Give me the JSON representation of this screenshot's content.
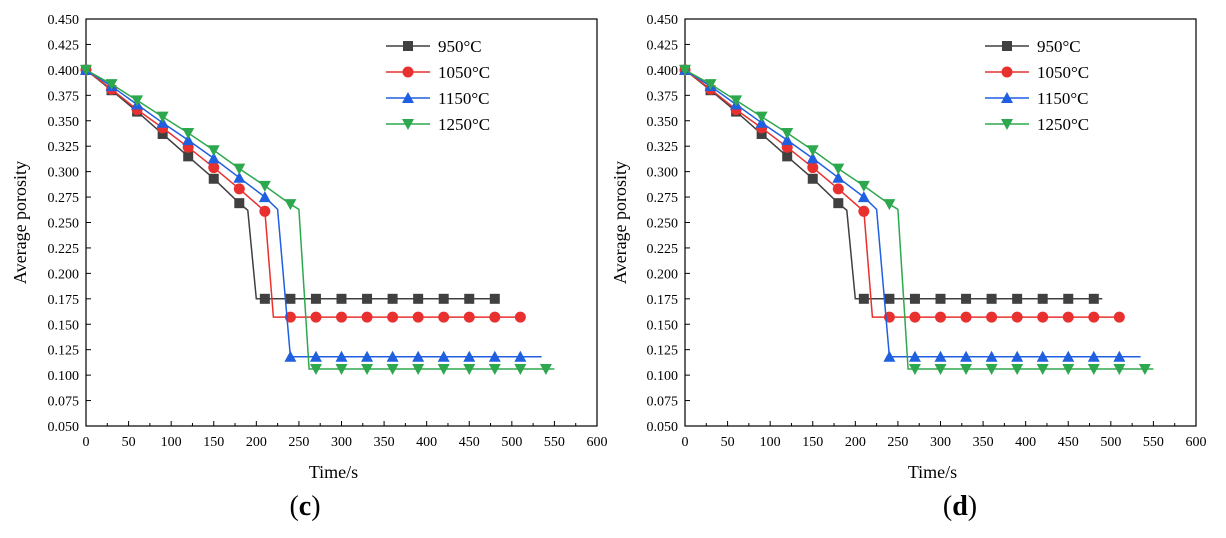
{
  "chart_data": [
    {
      "type": "line",
      "panel_label_open": "(",
      "panel_label_letter": "c",
      "panel_label_close": ")",
      "xlabel": "Time/s",
      "ylabel": "Average porosity",
      "xlim": [
        0,
        600
      ],
      "ylim": [
        0.05,
        0.45
      ],
      "x_ticks": [
        0,
        50,
        100,
        150,
        200,
        250,
        300,
        350,
        400,
        450,
        500,
        550,
        600
      ],
      "y_ticks": [
        "0.050",
        "0.075",
        "0.100",
        "0.125",
        "0.150",
        "0.175",
        "0.200",
        "0.225",
        "0.250",
        "0.275",
        "0.300",
        "0.325",
        "0.350",
        "0.375",
        "0.400",
        "0.425",
        "0.450"
      ],
      "grid": false,
      "legend_position": "top-right",
      "series": [
        {
          "name": "950°C",
          "color": "#404040",
          "marker": "square",
          "line_x": [
            0,
            30,
            60,
            90,
            120,
            150,
            180,
            190,
            200,
            210,
            480
          ],
          "line_y": [
            0.4,
            0.38,
            0.359,
            0.337,
            0.315,
            0.293,
            0.269,
            0.262,
            0.175,
            0.175,
            0.175
          ],
          "marker_x": [
            0,
            30,
            60,
            90,
            120,
            150,
            180,
            210,
            240,
            270,
            300,
            330,
            360,
            390,
            420,
            450,
            480
          ],
          "marker_y": [
            0.4,
            0.38,
            0.359,
            0.337,
            0.315,
            0.293,
            0.269,
            0.175,
            0.175,
            0.175,
            0.175,
            0.175,
            0.175,
            0.175,
            0.175,
            0.175,
            0.175
          ]
        },
        {
          "name": "1050°C",
          "color": "#e8312f",
          "marker": "circle",
          "line_x": [
            0,
            30,
            60,
            90,
            120,
            150,
            180,
            210,
            220,
            230,
            510
          ],
          "line_y": [
            0.4,
            0.381,
            0.361,
            0.343,
            0.324,
            0.304,
            0.283,
            0.261,
            0.157,
            0.157,
            0.157
          ],
          "marker_x": [
            0,
            30,
            60,
            90,
            120,
            150,
            180,
            210,
            240,
            270,
            300,
            330,
            360,
            390,
            420,
            450,
            480,
            510
          ],
          "marker_y": [
            0.4,
            0.381,
            0.361,
            0.343,
            0.324,
            0.304,
            0.283,
            0.261,
            0.157,
            0.157,
            0.157,
            0.157,
            0.157,
            0.157,
            0.157,
            0.157,
            0.157,
            0.157
          ]
        },
        {
          "name": "1150°C",
          "color": "#1f5fe0",
          "marker": "triangle-up",
          "line_x": [
            0,
            30,
            60,
            90,
            120,
            150,
            180,
            210,
            225,
            240,
            535
          ],
          "line_y": [
            0.4,
            0.384,
            0.366,
            0.348,
            0.331,
            0.313,
            0.294,
            0.275,
            0.263,
            0.118,
            0.118
          ],
          "marker_x": [
            0,
            30,
            60,
            90,
            120,
            150,
            180,
            210,
            240,
            270,
            300,
            330,
            360,
            390,
            420,
            450,
            480,
            510
          ],
          "marker_y": [
            0.4,
            0.384,
            0.366,
            0.348,
            0.331,
            0.313,
            0.294,
            0.275,
            0.118,
            0.118,
            0.118,
            0.118,
            0.118,
            0.118,
            0.118,
            0.118,
            0.118,
            0.118
          ]
        },
        {
          "name": "1250°C",
          "color": "#2ea84f",
          "marker": "triangle-down",
          "line_x": [
            0,
            30,
            60,
            90,
            120,
            150,
            180,
            210,
            240,
            250,
            262,
            550
          ],
          "line_y": [
            0.4,
            0.386,
            0.37,
            0.354,
            0.338,
            0.321,
            0.303,
            0.286,
            0.268,
            0.263,
            0.106,
            0.106
          ],
          "marker_x": [
            0,
            30,
            60,
            90,
            120,
            150,
            180,
            210,
            240,
            270,
            300,
            330,
            360,
            390,
            420,
            450,
            480,
            510,
            540
          ],
          "marker_y": [
            0.4,
            0.386,
            0.37,
            0.354,
            0.338,
            0.321,
            0.303,
            0.286,
            0.268,
            0.106,
            0.106,
            0.106,
            0.106,
            0.106,
            0.106,
            0.106,
            0.106,
            0.106,
            0.106
          ]
        }
      ]
    },
    {
      "type": "line",
      "panel_label_open": "(",
      "panel_label_letter": "d",
      "panel_label_close": ")",
      "xlabel": "Time/s",
      "ylabel": "Average porosity",
      "xlim": [
        0,
        600
      ],
      "ylim": [
        0.05,
        0.45
      ],
      "x_ticks": [
        0,
        50,
        100,
        150,
        200,
        250,
        300,
        350,
        400,
        450,
        500,
        550,
        600
      ],
      "y_ticks": [
        "0.050",
        "0.075",
        "0.100",
        "0.125",
        "0.150",
        "0.175",
        "0.200",
        "0.225",
        "0.250",
        "0.275",
        "0.300",
        "0.325",
        "0.350",
        "0.375",
        "0.400",
        "0.425",
        "0.450"
      ],
      "grid": false,
      "legend_position": "top-right",
      "series": [
        {
          "name": "950°C",
          "color": "#404040",
          "marker": "square",
          "line_x": [
            0,
            30,
            60,
            90,
            120,
            150,
            180,
            190,
            200,
            210,
            490
          ],
          "line_y": [
            0.4,
            0.38,
            0.359,
            0.337,
            0.315,
            0.293,
            0.269,
            0.262,
            0.175,
            0.175,
            0.175
          ],
          "marker_x": [
            0,
            30,
            60,
            90,
            120,
            150,
            180,
            210,
            240,
            270,
            300,
            330,
            360,
            390,
            420,
            450,
            480
          ],
          "marker_y": [
            0.4,
            0.38,
            0.359,
            0.337,
            0.315,
            0.293,
            0.269,
            0.175,
            0.175,
            0.175,
            0.175,
            0.175,
            0.175,
            0.175,
            0.175,
            0.175,
            0.175
          ]
        },
        {
          "name": "1050°C",
          "color": "#e8312f",
          "marker": "circle",
          "line_x": [
            0,
            30,
            60,
            90,
            120,
            150,
            180,
            210,
            220,
            230,
            515
          ],
          "line_y": [
            0.4,
            0.381,
            0.361,
            0.343,
            0.324,
            0.304,
            0.283,
            0.261,
            0.157,
            0.157,
            0.157
          ],
          "marker_x": [
            0,
            30,
            60,
            90,
            120,
            150,
            180,
            210,
            240,
            270,
            300,
            330,
            360,
            390,
            420,
            450,
            480,
            510
          ],
          "marker_y": [
            0.4,
            0.381,
            0.361,
            0.343,
            0.324,
            0.304,
            0.283,
            0.261,
            0.157,
            0.157,
            0.157,
            0.157,
            0.157,
            0.157,
            0.157,
            0.157,
            0.157,
            0.157
          ]
        },
        {
          "name": "1150°C",
          "color": "#1f5fe0",
          "marker": "triangle-up",
          "line_x": [
            0,
            30,
            60,
            90,
            120,
            150,
            180,
            210,
            225,
            240,
            535
          ],
          "line_y": [
            0.4,
            0.384,
            0.366,
            0.348,
            0.331,
            0.313,
            0.294,
            0.275,
            0.263,
            0.118,
            0.118
          ],
          "marker_x": [
            0,
            30,
            60,
            90,
            120,
            150,
            180,
            210,
            240,
            270,
            300,
            330,
            360,
            390,
            420,
            450,
            480,
            510
          ],
          "marker_y": [
            0.4,
            0.384,
            0.366,
            0.348,
            0.331,
            0.313,
            0.294,
            0.275,
            0.118,
            0.118,
            0.118,
            0.118,
            0.118,
            0.118,
            0.118,
            0.118,
            0.118,
            0.118
          ]
        },
        {
          "name": "1250°C",
          "color": "#2ea84f",
          "marker": "triangle-down",
          "line_x": [
            0,
            30,
            60,
            90,
            120,
            150,
            180,
            210,
            240,
            250,
            262,
            550
          ],
          "line_y": [
            0.4,
            0.386,
            0.37,
            0.354,
            0.338,
            0.321,
            0.303,
            0.286,
            0.268,
            0.263,
            0.106,
            0.106
          ],
          "marker_x": [
            0,
            30,
            60,
            90,
            120,
            150,
            180,
            210,
            240,
            270,
            300,
            330,
            360,
            390,
            420,
            450,
            480,
            510,
            540
          ],
          "marker_y": [
            0.4,
            0.386,
            0.37,
            0.354,
            0.338,
            0.321,
            0.303,
            0.286,
            0.268,
            0.106,
            0.106,
            0.106,
            0.106,
            0.106,
            0.106,
            0.106,
            0.106,
            0.106,
            0.106
          ]
        }
      ]
    }
  ]
}
